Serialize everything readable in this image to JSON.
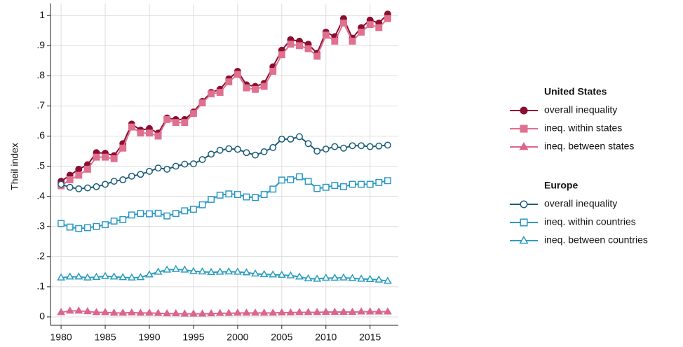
{
  "chart_data": {
    "type": "line",
    "y_label": "Theil index",
    "xlim": [
      1978.8,
      2018.2
    ],
    "xticks": [
      1980,
      1985,
      1990,
      1995,
      2000,
      2005,
      2010,
      2015
    ],
    "ylim": [
      -0.028,
      1.04
    ],
    "yticks": [
      0,
      {
        "value": 0.1,
        "label": ".1"
      },
      {
        "value": 0.2,
        "label": ".2"
      },
      {
        "value": 0.3,
        "label": ".3"
      },
      {
        "value": 0.4,
        "label": ".4"
      },
      {
        "value": 0.5,
        "label": ".5"
      },
      {
        "value": 0.6,
        "label": ".6"
      },
      {
        "value": 0.7,
        "label": ".7"
      },
      {
        "value": 0.8,
        "label": ".8"
      },
      {
        "value": 0.9,
        "label": ".9"
      },
      1
    ],
    "grid": true,
    "x": [
      1980,
      1981,
      1982,
      1983,
      1984,
      1985,
      1986,
      1987,
      1988,
      1989,
      1990,
      1991,
      1992,
      1993,
      1994,
      1995,
      1996,
      1997,
      1998,
      1999,
      2000,
      2001,
      2002,
      2003,
      2004,
      2005,
      2006,
      2007,
      2008,
      2009,
      2010,
      2011,
      2012,
      2013,
      2014,
      2015,
      2016,
      2017
    ],
    "groups": [
      {
        "title": "United States",
        "series": [
          {
            "name": "overall inequality",
            "color": "#8c0d30",
            "marker": "circle",
            "filled": true,
            "values": [
              0.45,
              0.47,
              0.49,
              0.505,
              0.545,
              0.543,
              0.535,
              0.575,
              0.64,
              0.62,
              0.625,
              0.61,
              0.66,
              0.655,
              0.655,
              0.68,
              0.715,
              0.745,
              0.755,
              0.79,
              0.815,
              0.77,
              0.765,
              0.775,
              0.83,
              0.885,
              0.92,
              0.915,
              0.905,
              0.875,
              0.945,
              0.93,
              0.99,
              0.925,
              0.96,
              0.985,
              0.975,
              1.005
            ]
          },
          {
            "name": "ineq. within states",
            "color": "#e0708f",
            "marker": "square",
            "filled": true,
            "values": [
              0.435,
              0.455,
              0.47,
              0.49,
              0.53,
              0.53,
              0.525,
              0.56,
              0.63,
              0.61,
              0.61,
              0.6,
              0.655,
              0.645,
              0.645,
              0.675,
              0.71,
              0.74,
              0.745,
              0.78,
              0.805,
              0.76,
              0.755,
              0.765,
              0.815,
              0.87,
              0.905,
              0.9,
              0.89,
              0.865,
              0.935,
              0.915,
              0.975,
              0.915,
              0.945,
              0.97,
              0.96,
              0.99
            ]
          },
          {
            "name": "ineq. between states",
            "color": "#d9668a",
            "marker": "triangle",
            "filled": true,
            "values": [
              0.015,
              0.02,
              0.02,
              0.018,
              0.015,
              0.015,
              0.013,
              0.013,
              0.014,
              0.013,
              0.013,
              0.012,
              0.011,
              0.011,
              0.01,
              0.01,
              0.01,
              0.011,
              0.012,
              0.012,
              0.013,
              0.013,
              0.013,
              0.013,
              0.013,
              0.014,
              0.014,
              0.015,
              0.015,
              0.015,
              0.016,
              0.016,
              0.016,
              0.016,
              0.017,
              0.017,
              0.017,
              0.017
            ]
          }
        ]
      },
      {
        "title": "Europe",
        "series": [
          {
            "name": "overall inequality",
            "color": "#1b5d78",
            "marker": "circle",
            "filled": false,
            "values": [
              0.44,
              0.43,
              0.425,
              0.428,
              0.432,
              0.44,
              0.45,
              0.455,
              0.467,
              0.473,
              0.483,
              0.494,
              0.49,
              0.5,
              0.507,
              0.508,
              0.522,
              0.54,
              0.553,
              0.558,
              0.556,
              0.545,
              0.537,
              0.548,
              0.562,
              0.59,
              0.59,
              0.598,
              0.575,
              0.55,
              0.557,
              0.565,
              0.56,
              0.568,
              0.568,
              0.565,
              0.567,
              0.57
            ]
          },
          {
            "name": "ineq. within countries",
            "color": "#2b98c6",
            "marker": "square",
            "filled": false,
            "values": [
              0.31,
              0.298,
              0.293,
              0.296,
              0.3,
              0.306,
              0.318,
              0.323,
              0.338,
              0.343,
              0.342,
              0.344,
              0.335,
              0.343,
              0.352,
              0.357,
              0.372,
              0.39,
              0.404,
              0.408,
              0.406,
              0.398,
              0.396,
              0.406,
              0.424,
              0.454,
              0.455,
              0.465,
              0.45,
              0.426,
              0.43,
              0.436,
              0.432,
              0.44,
              0.44,
              0.44,
              0.446,
              0.452
            ]
          },
          {
            "name": "ineq. between countries",
            "color": "#2a9dbe",
            "marker": "triangle",
            "filled": false,
            "values": [
              0.13,
              0.133,
              0.133,
              0.13,
              0.132,
              0.135,
              0.133,
              0.131,
              0.13,
              0.131,
              0.14,
              0.149,
              0.156,
              0.158,
              0.156,
              0.151,
              0.15,
              0.148,
              0.149,
              0.15,
              0.149,
              0.147,
              0.143,
              0.141,
              0.14,
              0.139,
              0.137,
              0.133,
              0.127,
              0.126,
              0.129,
              0.129,
              0.13,
              0.128,
              0.126,
              0.125,
              0.123,
              0.119
            ]
          }
        ]
      }
    ]
  }
}
